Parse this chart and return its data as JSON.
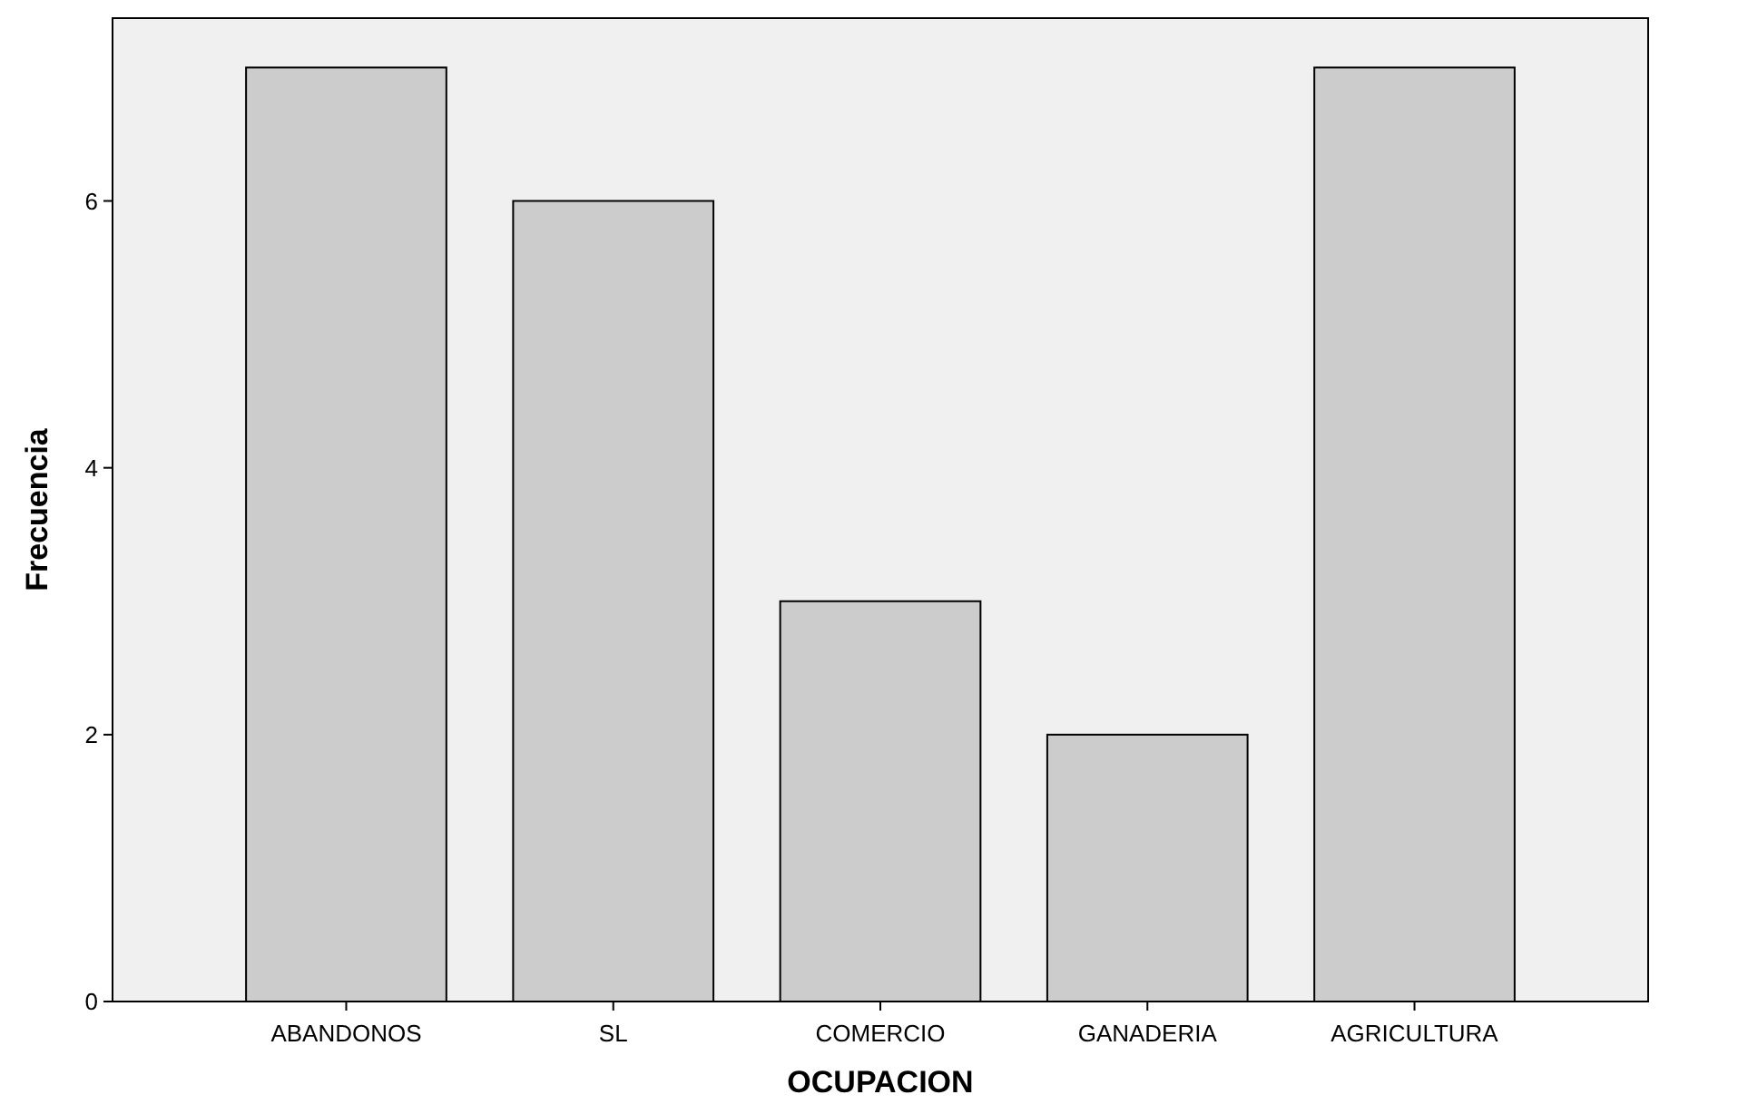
{
  "chart_data": {
    "type": "bar",
    "xlabel": "OCUPACION",
    "ylabel": "Frecuencia",
    "categories": [
      "ABANDONOS",
      "SL",
      "COMERCIO",
      "GANADERIA",
      "AGRICULTURA"
    ],
    "values": [
      7,
      6,
      3,
      2,
      7
    ],
    "color": "#cccccc",
    "ylim": [
      0,
      7.37
    ],
    "yticks": [
      0,
      2,
      4,
      6
    ],
    "grid": false
  }
}
